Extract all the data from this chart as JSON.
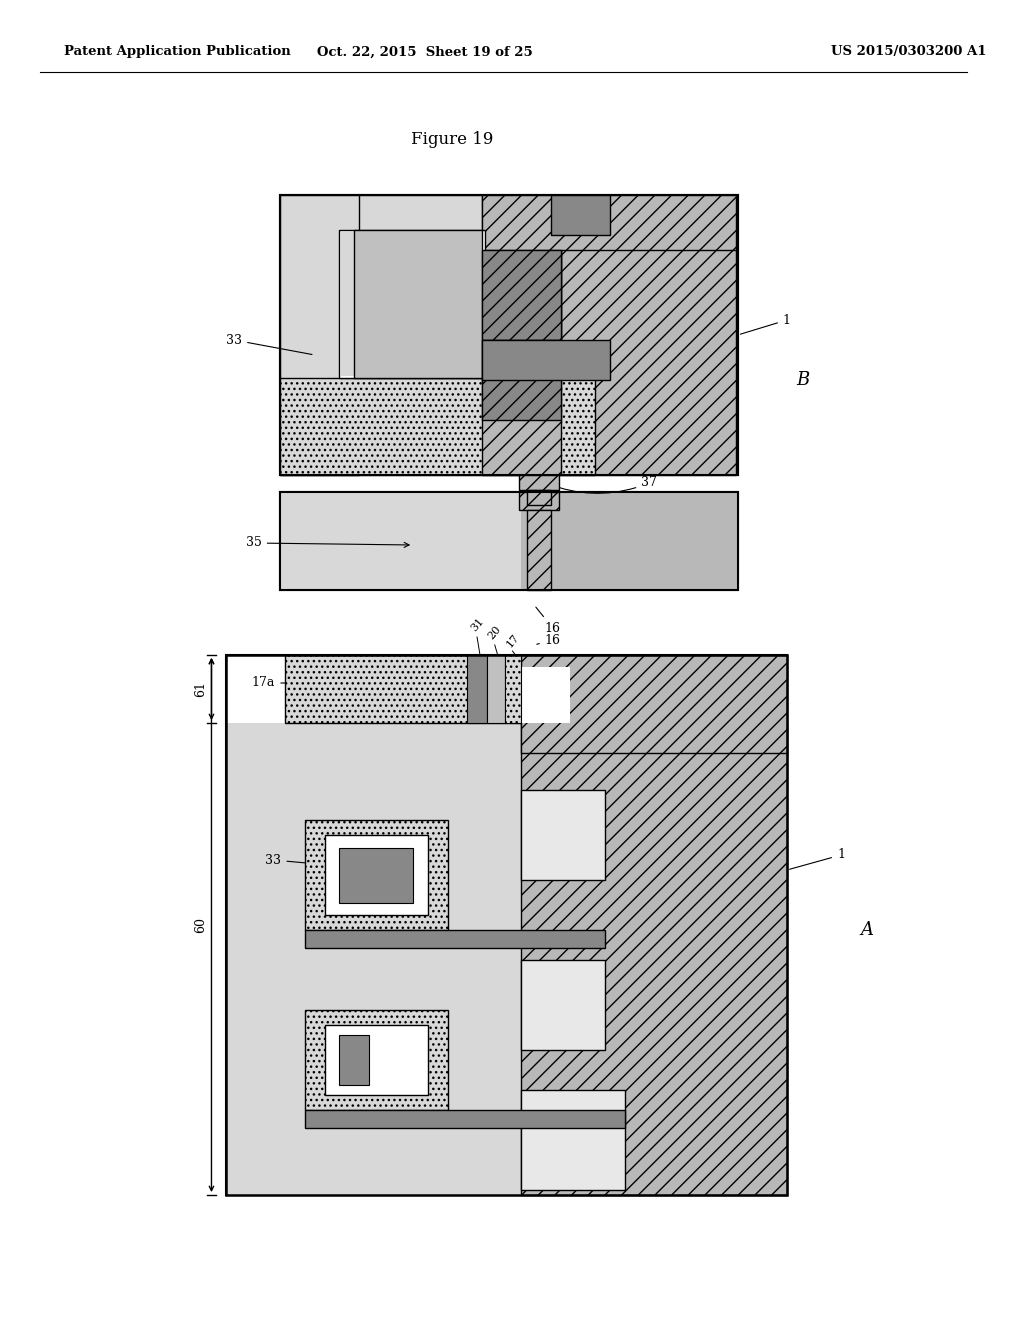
{
  "header_left": "Patent Application Publication",
  "header_mid": "Oct. 22, 2015  Sheet 19 of 25",
  "header_right": "US 2015/0303200 A1",
  "figure_title": "Figure 19",
  "bg_color": "#ffffff",
  "c_white": "#ffffff",
  "c_stipple": "#d8d8d8",
  "c_hatch": "#b8b8b8",
  "c_gray_med": "#c0c0c0",
  "c_gray_dark": "#888888",
  "c_black": "#000000",
  "c_light": "#e8e8e8"
}
